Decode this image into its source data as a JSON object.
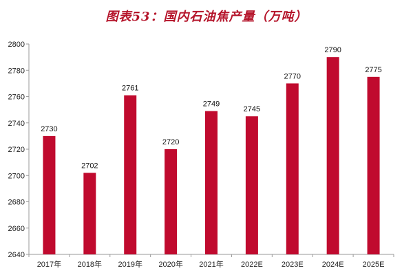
{
  "title": "图表53：国内石油焦产量（万吨）",
  "colors": {
    "bar": "#c00a2e",
    "axis": "#9a9a9a",
    "title": "#b5152b"
  },
  "chart_data": {
    "type": "bar",
    "title": "图表53：国内石油焦产量（万吨）",
    "categories": [
      "2017年",
      "2018年",
      "2019年",
      "2020年",
      "2021年",
      "2022E",
      "2023E",
      "2024E",
      "2025E"
    ],
    "values": [
      2730,
      2702,
      2761,
      2720,
      2749,
      2745,
      2770,
      2790,
      2775
    ],
    "ylim": [
      2640,
      2800
    ],
    "yticks": [
      2640,
      2660,
      2680,
      2700,
      2720,
      2740,
      2760,
      2780,
      2800
    ],
    "grid": false,
    "data_labels": true
  }
}
